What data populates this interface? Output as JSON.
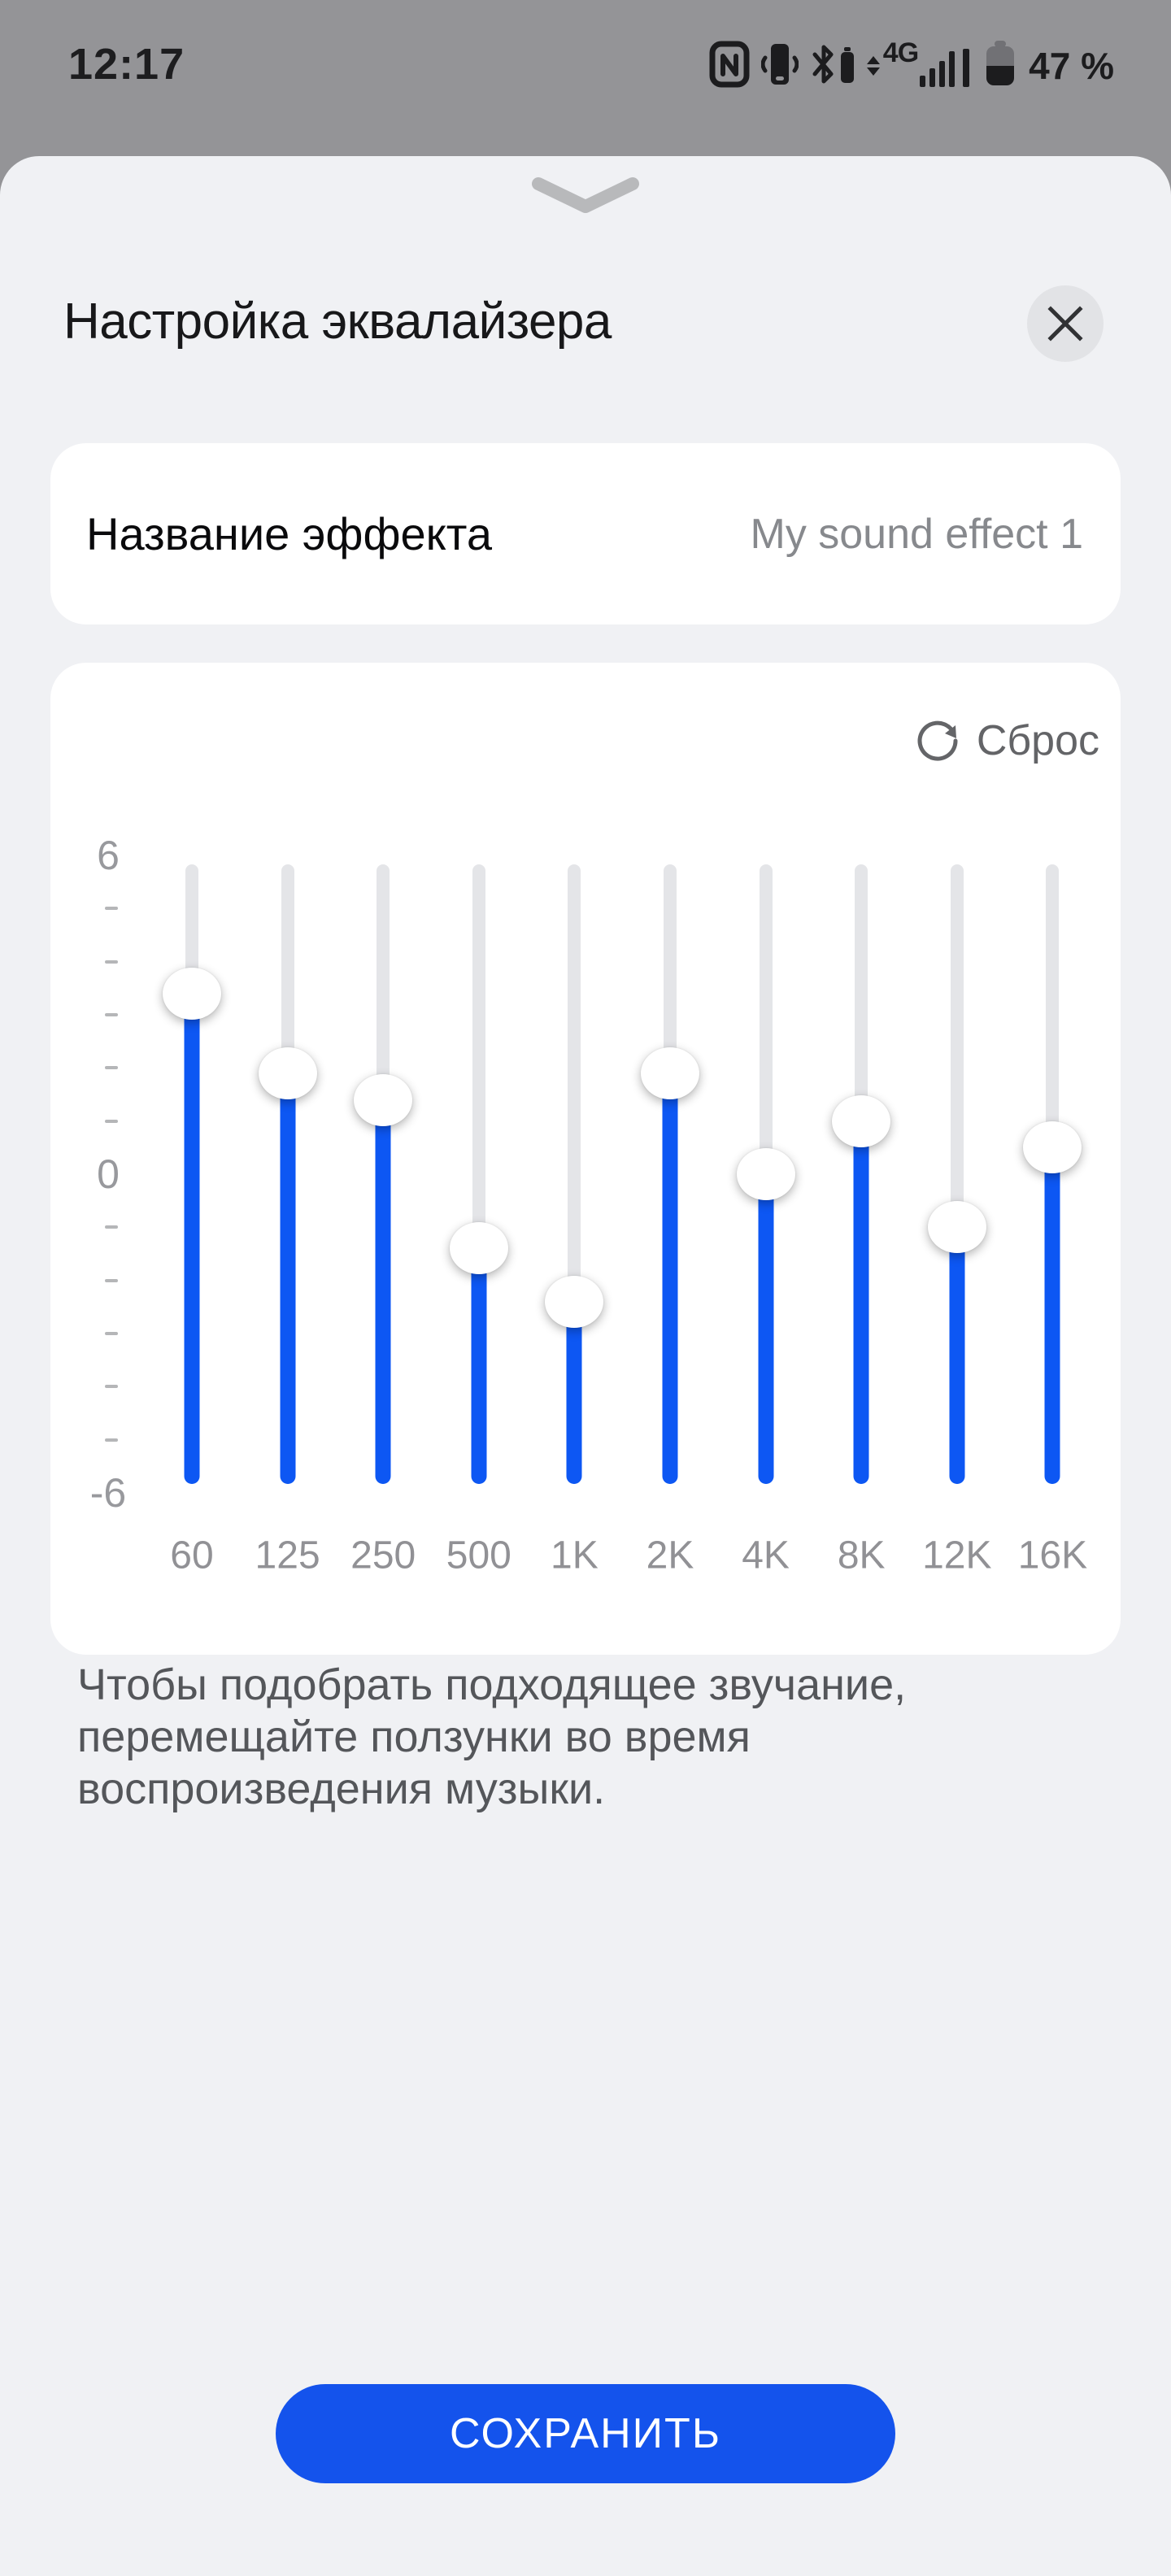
{
  "status_bar": {
    "time": "12:17",
    "network_label": "4G",
    "battery_percent": "47 %",
    "icons": [
      "nfc-icon",
      "vibrate-icon",
      "bluetooth-battery-icon",
      "mobile-signal-icon",
      "battery-icon"
    ]
  },
  "sheet": {
    "title": "Настройка эквалайзера",
    "name_field": {
      "label": "Название эффекта",
      "value": "My sound effect 1"
    },
    "reset_label": "Сброс",
    "description": "Чтобы подобрать подходящее звучание,\nперемещайте ползунки во время\nвоспроизведения музыки.",
    "save_label": "СОХРАНИТЬ"
  },
  "chart_data": {
    "type": "equalizer-sliders",
    "title": "Настройка эквалайзера",
    "categories": [
      "60",
      "125",
      "250",
      "500",
      "1K",
      "2K",
      "4K",
      "8K",
      "12K",
      "16K"
    ],
    "values": [
      3.4,
      1.9,
      1.4,
      -1.4,
      -2.4,
      1.9,
      0,
      1.0,
      -1.0,
      0.5
    ],
    "unit": "dB",
    "ylim": [
      -6,
      6
    ],
    "yticks_labeled": [
      "6",
      "0",
      "-6"
    ],
    "yticks_minor": [
      5,
      4,
      3,
      2,
      1,
      -1,
      -2,
      -3,
      -4,
      -5
    ],
    "legend": "none",
    "grid": "off"
  },
  "colors": {
    "backdrop": "#949497",
    "sheet_bg": "#f0f1f4",
    "card_bg": "#ffffff",
    "slider_blue": "#0d57f3",
    "save_button_blue": "#1453ec",
    "track_gray": "#e4e5e8",
    "text_primary": "#18181a",
    "text_secondary": "#87898d",
    "axis_gray": "#98999d"
  }
}
